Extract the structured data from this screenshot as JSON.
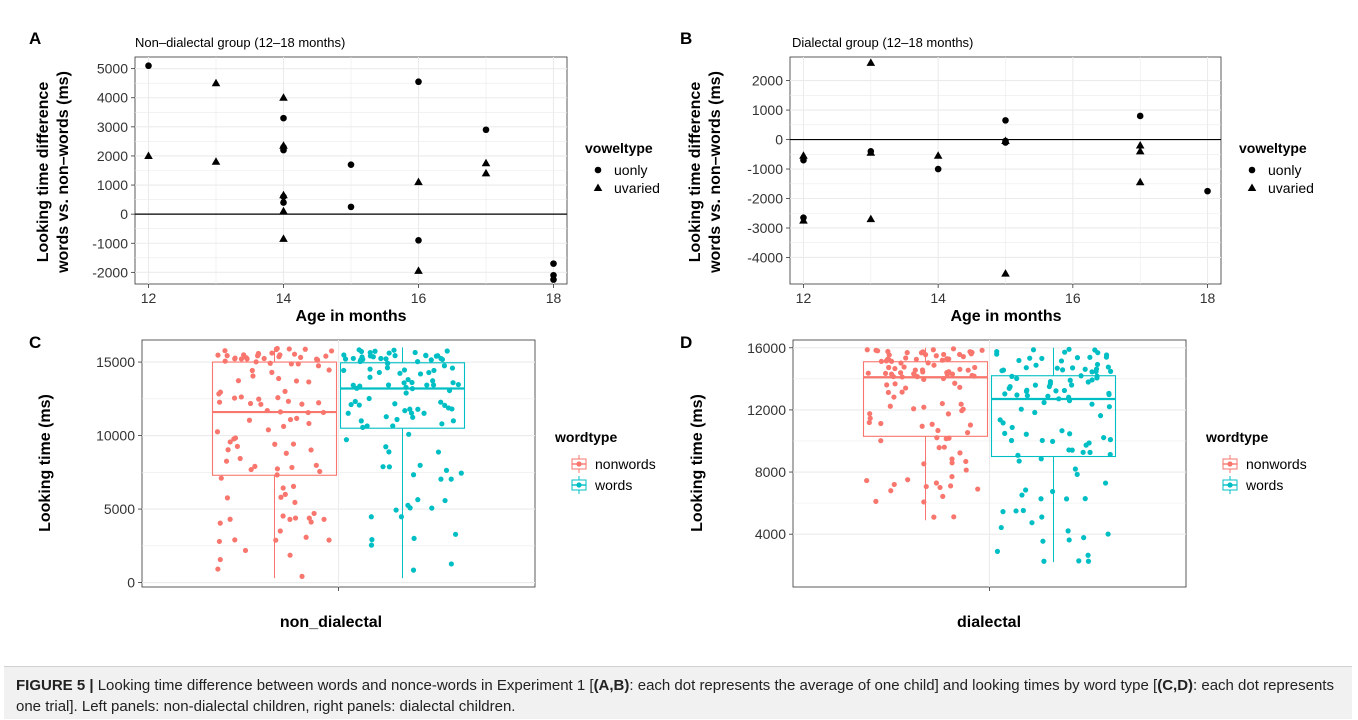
{
  "panels": {
    "A": {
      "letter": "A",
      "subtitle": "Non–dialectal group (12–18 months)",
      "ylabel": [
        "Looking time difference",
        "words vs. non–words (ms)"
      ],
      "xlabel": "Age in months",
      "legend_title": "voweltype",
      "legend_items": [
        "uonly",
        "uvaried"
      ]
    },
    "B": {
      "letter": "B",
      "subtitle": "Dialectal group (12–18 months)",
      "ylabel": [
        "Looking time difference",
        "words vs. non–words (ms)"
      ],
      "xlabel": "Age in months",
      "legend_title": "voweltype",
      "legend_items": [
        "uonly",
        "uvaried"
      ]
    },
    "C": {
      "letter": "C",
      "ylabel": "Looking time (ms)",
      "xlabel": "non_dialectal",
      "legend_title": "wordtype",
      "legend_items": [
        "nonwords",
        "words"
      ]
    },
    "D": {
      "letter": "D",
      "ylabel": "Looking time (ms)",
      "xlabel": "dialectal",
      "legend_title": "wordtype",
      "legend_items": [
        "nonwords",
        "words"
      ]
    }
  },
  "caption": {
    "figure_label": "FIGURE 5 |",
    "t1": " Looking time difference between words and nonce-words in Experiment 1 [",
    "b1": "(A,B)",
    "t2": ": each dot represents the average of one child] and looking times by word type [",
    "b2": "(C,D)",
    "t3": ": each dot represents one trial]. Left panels: non-dialectal children, right panels: dialectal children."
  },
  "colors": {
    "nonwords": "#f8766d",
    "words": "#00bfc4",
    "grid": "#ebebeb",
    "points": "#000000"
  },
  "chart_data": [
    {
      "panel": "A",
      "type": "scatter",
      "title": "Non–dialectal group (12–18 months)",
      "xlabel": "Age in months",
      "ylabel": "Looking time difference words vs. non–words (ms)",
      "xlim": [
        11.8,
        18.2
      ],
      "ylim": [
        -2400,
        5400
      ],
      "xticks": [
        12,
        14,
        16,
        18
      ],
      "yticks": [
        -2000,
        -1000,
        0,
        1000,
        2000,
        3000,
        4000,
        5000
      ],
      "hline": 0,
      "grid": true,
      "legend_position": "right",
      "series": [
        {
          "name": "uonly",
          "shape": "circle",
          "points": [
            [
              12,
              5100
            ],
            [
              14,
              3300
            ],
            [
              14,
              2300
            ],
            [
              14,
              2200
            ],
            [
              14,
              600
            ],
            [
              14,
              400
            ],
            [
              15,
              1700
            ],
            [
              15,
              250
            ],
            [
              16,
              4550
            ],
            [
              16,
              -900
            ],
            [
              17,
              2900
            ],
            [
              18,
              -1700
            ],
            [
              18,
              -2100
            ],
            [
              18,
              -2250
            ]
          ]
        },
        {
          "name": "uvaried",
          "shape": "triangle",
          "points": [
            [
              12,
              2000
            ],
            [
              13,
              4500
            ],
            [
              13,
              1800
            ],
            [
              14,
              4000
            ],
            [
              14,
              2350
            ],
            [
              14,
              650
            ],
            [
              14,
              100
            ],
            [
              14,
              -850
            ],
            [
              16,
              1100
            ],
            [
              16,
              -1950
            ],
            [
              17,
              1750
            ],
            [
              17,
              1400
            ]
          ]
        }
      ]
    },
    {
      "panel": "B",
      "type": "scatter",
      "title": "Dialectal group (12–18 months)",
      "xlabel": "Age in months",
      "ylabel": "Looking time difference words vs. non–words (ms)",
      "xlim": [
        11.8,
        18.2
      ],
      "ylim": [
        -4900,
        2800
      ],
      "xticks": [
        12,
        14,
        16,
        18
      ],
      "yticks": [
        -4000,
        -3000,
        -2000,
        -1000,
        0,
        1000,
        2000
      ],
      "hline": 0,
      "grid": true,
      "legend_position": "right",
      "series": [
        {
          "name": "uonly",
          "shape": "circle",
          "points": [
            [
              12,
              -700
            ],
            [
              12,
              -2650
            ],
            [
              13,
              -400
            ],
            [
              14,
              -1000
            ],
            [
              15,
              650
            ],
            [
              15,
              -50
            ],
            [
              15,
              -100
            ],
            [
              17,
              800
            ],
            [
              18,
              -1750
            ]
          ]
        },
        {
          "name": "uvaried",
          "shape": "triangle",
          "points": [
            [
              12,
              -550
            ],
            [
              12,
              -2750
            ],
            [
              13,
              2600
            ],
            [
              13,
              -450
            ],
            [
              13,
              -2700
            ],
            [
              14,
              -550
            ],
            [
              15,
              -50
            ],
            [
              15,
              -4550
            ],
            [
              17,
              -200
            ],
            [
              17,
              -400
            ],
            [
              17,
              -1450
            ]
          ]
        }
      ]
    },
    {
      "panel": "C",
      "type": "box",
      "xlabel": "non_dialectal",
      "ylabel": "Looking time (ms)",
      "ylim": [
        -300,
        16500
      ],
      "yticks": [
        0,
        5000,
        10000,
        15000
      ],
      "grid": true,
      "legend_position": "right",
      "series": [
        {
          "name": "nonwords",
          "min": 300,
          "q1": 7300,
          "median": 11600,
          "q3": 15000,
          "max": 16000
        },
        {
          "name": "words",
          "min": 300,
          "q1": 10500,
          "median": 13200,
          "q3": 14950,
          "max": 16000
        }
      ]
    },
    {
      "panel": "D",
      "type": "box",
      "xlabel": "dialectal",
      "ylabel": "Looking time (ms)",
      "ylim": [
        600,
        16500
      ],
      "yticks": [
        4000,
        8000,
        12000,
        16000
      ],
      "grid": true,
      "legend_position": "right",
      "series": [
        {
          "name": "nonwords",
          "min": 4900,
          "q1": 10300,
          "median": 14100,
          "q3": 15100,
          "max": 16000
        },
        {
          "name": "words",
          "min": 2200,
          "q1": 9000,
          "median": 12700,
          "q3": 14200,
          "max": 16000
        }
      ]
    }
  ]
}
